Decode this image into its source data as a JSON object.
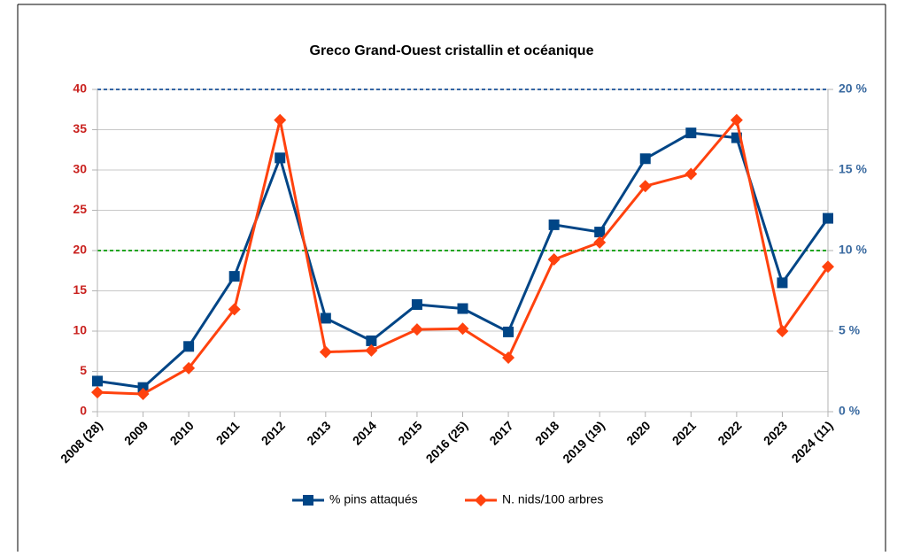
{
  "chart_data": {
    "type": "line",
    "title": "Greco Grand-Ouest cristallin et océanique",
    "categories": [
      "2008 (28)",
      "2009",
      "2010",
      "2011",
      "2012",
      "2013",
      "2014",
      "2015",
      "2016 (25)",
      "2017",
      "2018",
      "2019 (19)",
      "2020",
      "2021",
      "2022",
      "2023",
      "2024 (11)"
    ],
    "series": [
      {
        "name": "% pins attaqués",
        "color": "#004586",
        "marker": "square",
        "axis": "y2",
        "values": [
          1.9,
          1.5,
          4.05,
          8.4,
          15.75,
          5.8,
          4.4,
          6.65,
          6.4,
          4.95,
          11.6,
          11.15,
          15.7,
          17.3,
          17.0,
          8.0,
          12.0
        ]
      },
      {
        "name": "N. nids/100 arbres",
        "color": "#ff420e",
        "marker": "diamond",
        "values": [
          2.4,
          2.2,
          5.4,
          12.7,
          36.2,
          7.4,
          7.6,
          10.2,
          10.3,
          6.7,
          18.9,
          21.0,
          28.0,
          29.5,
          36.2,
          10.0,
          18.0
        ]
      }
    ],
    "ylim": [
      0,
      40
    ],
    "yticks": [
      0,
      5,
      10,
      15,
      20,
      25,
      30,
      35,
      40
    ],
    "y_color": "#c9211e",
    "y2lim": [
      0,
      20
    ],
    "y2ticks": [
      {
        "value": 0,
        "label": "0 %"
      },
      {
        "value": 5,
        "label": "5 %"
      },
      {
        "value": 10,
        "label": "10 %"
      },
      {
        "value": 15,
        "label": "15 %"
      },
      {
        "value": 20,
        "label": "20 %"
      }
    ],
    "y2_color": "#3a6aa0",
    "reference_lines": [
      {
        "value": 40,
        "color": "#3465a4"
      },
      {
        "value": 20,
        "color": "#1ea51e"
      }
    ],
    "grid": true,
    "legend": "bottom"
  }
}
